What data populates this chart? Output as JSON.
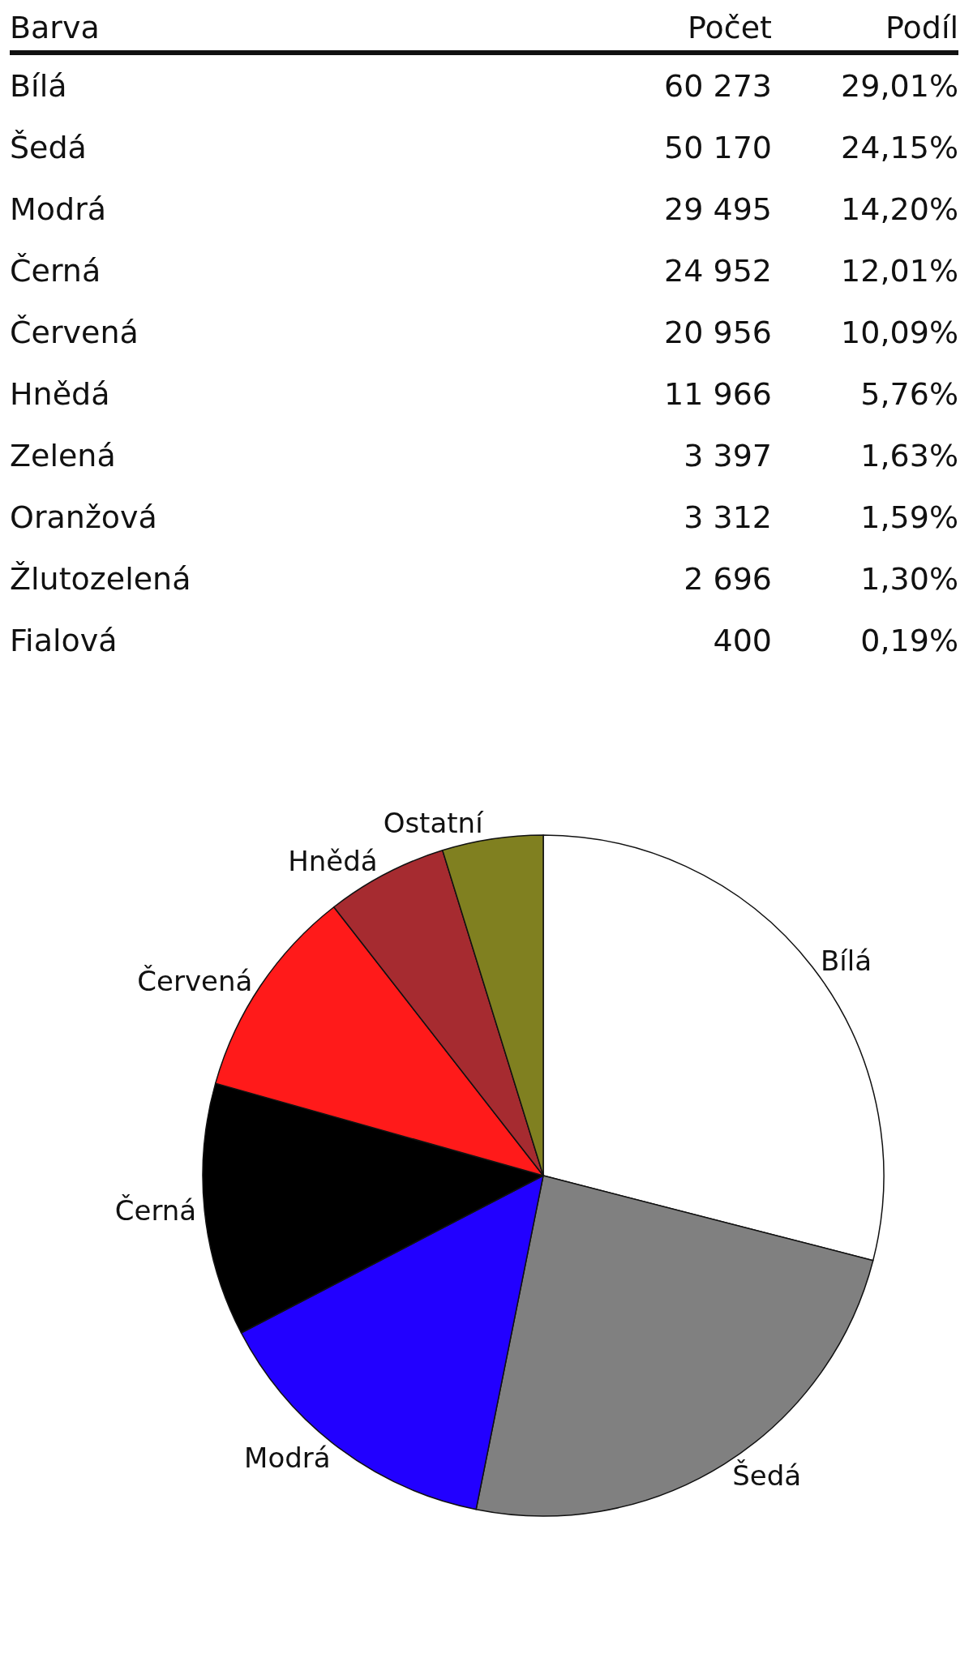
{
  "chart_data": [
    {
      "type": "other",
      "xlabel": "Barva",
      "categories": [
        "Bílá",
        "Šedá",
        "Modrá",
        "Černá",
        "Červená",
        "Hnědá",
        "Zelená",
        "Oranžová",
        "Žlutozelená",
        "Fialová"
      ],
      "series": [
        {
          "name": "Počet",
          "values": [
            60273,
            50170,
            29495,
            24952,
            20956,
            11966,
            3397,
            3312,
            2696,
            400
          ],
          "value_labels": [
            "60 273",
            "50 170",
            "29 495",
            "24 952",
            "20 956",
            "11 966",
            "3 397",
            "3 312",
            "2 696",
            "400"
          ]
        },
        {
          "name": "Podíl",
          "values": [
            29.01,
            24.15,
            14.2,
            12.01,
            10.09,
            5.76,
            1.63,
            1.59,
            1.3,
            0.19
          ],
          "value_labels": [
            "29,01%",
            "24,15%",
            "14,20%",
            "12,01%",
            "10,09%",
            "5,76%",
            "1,63%",
            "1,59%",
            "1,30%",
            "0,19%"
          ]
        }
      ]
    },
    {
      "type": "pie",
      "categories": [
        "Bílá",
        "Šedá",
        "Modrá",
        "Černá",
        "Červená",
        "Hnědá",
        "Ostatní"
      ],
      "values": [
        29.01,
        24.15,
        14.2,
        12.01,
        10.09,
        5.76,
        4.78
      ],
      "colors": [
        "#ffffff",
        "#808080",
        "#2200ff",
        "#000000",
        "#ff1a1a",
        "#a62b30",
        "#808020"
      ]
    }
  ]
}
